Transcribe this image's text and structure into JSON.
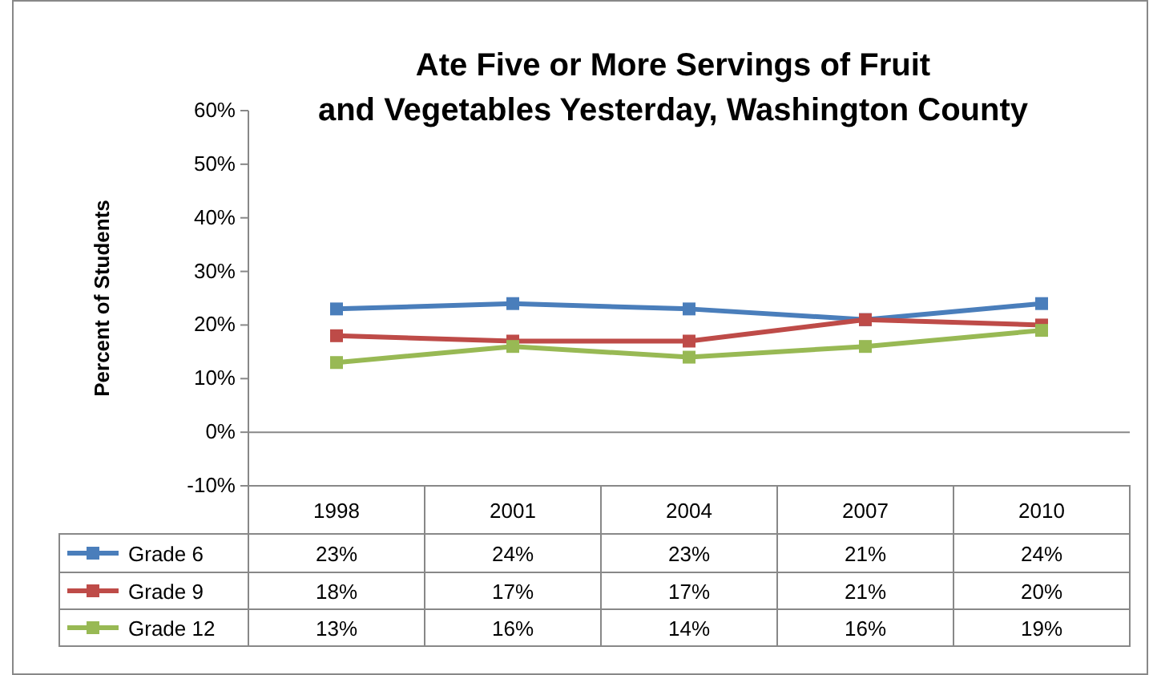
{
  "chart_data": {
    "type": "line",
    "title": "Ate Five or More Servings of Fruit and Vegetables Yesterday, Washington County",
    "ylabel": "Percent of Students",
    "categories": [
      "1998",
      "2001",
      "2004",
      "2007",
      "2010"
    ],
    "series": [
      {
        "name": "Grade 6",
        "color": "#4a7ebb",
        "values": [
          23,
          24,
          23,
          21,
          24
        ],
        "value_labels": [
          "23%",
          "24%",
          "23%",
          "21%",
          "24%"
        ]
      },
      {
        "name": "Grade 9",
        "color": "#be4b48",
        "values": [
          18,
          17,
          17,
          21,
          20
        ],
        "value_labels": [
          "18%",
          "17%",
          "17%",
          "21%",
          "20%"
        ]
      },
      {
        "name": "Grade 12",
        "color": "#98b954",
        "values": [
          13,
          16,
          14,
          16,
          19
        ],
        "value_labels": [
          "13%",
          "16%",
          "14%",
          "16%",
          "19%"
        ]
      }
    ],
    "ylim": [
      -10,
      60
    ],
    "yticks": [
      {
        "value": -10,
        "label": "-10%"
      },
      {
        "value": 0,
        "label": "0%"
      },
      {
        "value": 10,
        "label": "10%"
      },
      {
        "value": 20,
        "label": "20%"
      },
      {
        "value": 30,
        "label": "30%"
      },
      {
        "value": 40,
        "label": "40%"
      },
      {
        "value": 50,
        "label": "50%"
      },
      {
        "value": 60,
        "label": "60%"
      }
    ],
    "legend": "bottom",
    "marker": "square",
    "line_style": "solid"
  }
}
